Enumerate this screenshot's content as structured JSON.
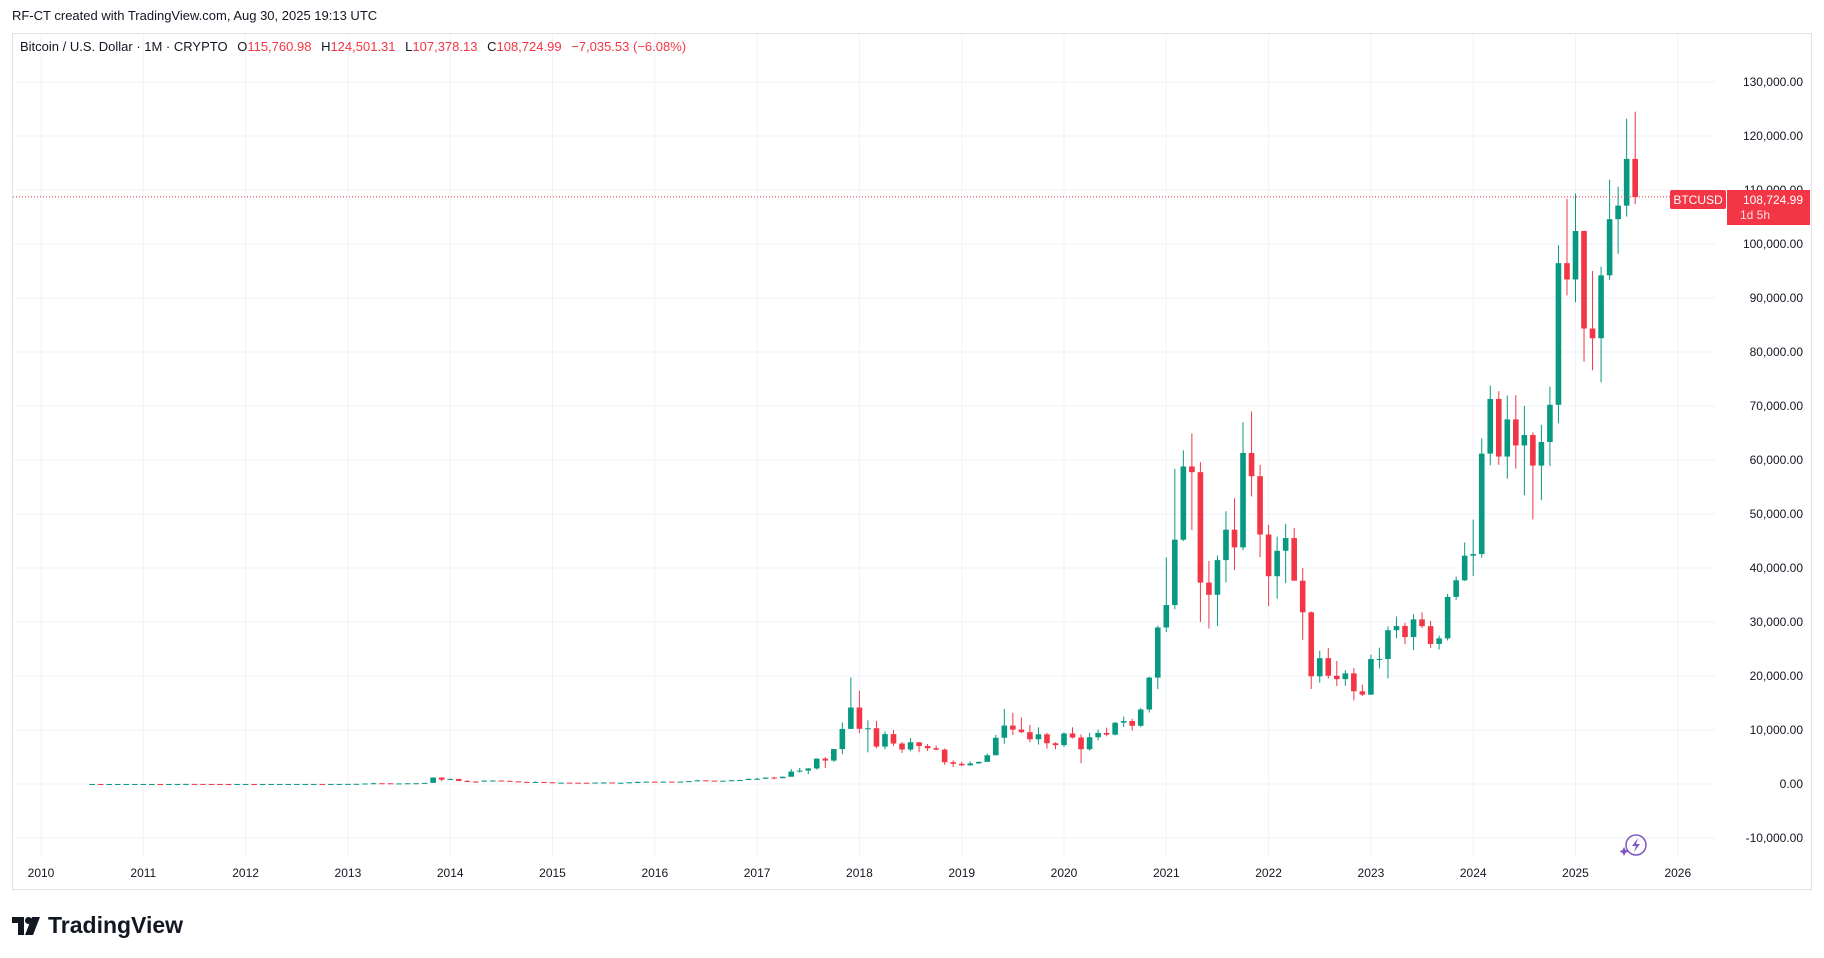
{
  "credit": "RF-CT created with TradingView.com, Aug 30, 2025 19:13 UTC",
  "legend": {
    "symbol": "Bitcoin / U.S. Dollar · 1M · CRYPTO",
    "o_label": "O",
    "o": "115,760.98",
    "h_label": "H",
    "h": "124,501.31",
    "l_label": "L",
    "l": "107,378.13",
    "c_label": "C",
    "c": "108,724.99",
    "change": "−7,035.53 (−6.08%)"
  },
  "price_tag": {
    "ticker": "BTCUSD",
    "price": "108,724.99",
    "countdown": "1d 5h"
  },
  "brand": "TradingView",
  "colors": {
    "up": "#089981",
    "down": "#f23645",
    "grid": "#f0f3fa",
    "text": "#131722",
    "ai_icon": "#7e57c2"
  },
  "icons": [
    "tradingview-logo-icon",
    "lightning-icon"
  ],
  "chart_data": {
    "type": "candlestick",
    "interval": "1M",
    "title": "Bitcoin / U.S. Dollar · 1M · CRYPTO",
    "grid": true,
    "ylim": [
      -10000,
      130000
    ],
    "y_ticks": [
      "130,000.00",
      "120,000.00",
      "110,000.00",
      "100,000.00",
      "90,000.00",
      "80,000.00",
      "70,000.00",
      "60,000.00",
      "50,000.00",
      "40,000.00",
      "30,000.00",
      "20,000.00",
      "10,000.00",
      "0.00",
      "-10,000.00"
    ],
    "y_tick_values": [
      130000,
      120000,
      110000,
      100000,
      90000,
      80000,
      70000,
      60000,
      50000,
      40000,
      30000,
      20000,
      10000,
      0,
      -10000
    ],
    "x_ticks": [
      "2010",
      "2011",
      "2012",
      "2013",
      "2014",
      "2015",
      "2016",
      "2017",
      "2018",
      "2019",
      "2020",
      "2021",
      "2022",
      "2023",
      "2024",
      "2025",
      "2026"
    ],
    "last_price": 108724.99,
    "start": "2010-07",
    "ohlc": [
      [
        0.05,
        0.09,
        0.05,
        0.07
      ],
      [
        0.07,
        0.07,
        0.05,
        0.06
      ],
      [
        0.06,
        0.07,
        0.06,
        0.06
      ],
      [
        0.06,
        0.2,
        0.06,
        0.19
      ],
      [
        0.19,
        0.5,
        0.19,
        0.21
      ],
      [
        0.21,
        0.3,
        0.2,
        0.3
      ],
      [
        0.3,
        0.6,
        0.3,
        0.52
      ],
      [
        0.52,
        1.1,
        0.52,
        0.86
      ],
      [
        0.86,
        0.95,
        0.7,
        0.78
      ],
      [
        0.78,
        4,
        0.78,
        3.5
      ],
      [
        3.5,
        9,
        3.5,
        8.7
      ],
      [
        8.7,
        32,
        8.7,
        16.7
      ],
      [
        16.7,
        17,
        12,
        13.4
      ],
      [
        13.4,
        15,
        8,
        8.2
      ],
      [
        8.2,
        9,
        4.5,
        5.1
      ],
      [
        5.1,
        5.2,
        2,
        3.2
      ],
      [
        3.2,
        3.3,
        2,
        2.97
      ],
      [
        2.97,
        4.8,
        2.8,
        4.7
      ],
      [
        4.7,
        7.2,
        4.7,
        5.5
      ],
      [
        5.5,
        6.1,
        4.3,
        4.9
      ],
      [
        4.9,
        5.4,
        4.7,
        4.9
      ],
      [
        4.9,
        5.3,
        4.7,
        5.0
      ],
      [
        5.0,
        5.2,
        4.9,
        5.1
      ],
      [
        5.1,
        6.8,
        5.1,
        6.7
      ],
      [
        6.7,
        9.6,
        6.5,
        9.3
      ],
      [
        9.3,
        16,
        7,
        10.2
      ],
      [
        10.2,
        12.6,
        9.9,
        12.4
      ],
      [
        12.4,
        12.9,
        10,
        11.2
      ],
      [
        11.2,
        12.8,
        10.7,
        12.6
      ],
      [
        12.6,
        13.9,
        12.5,
        13.5
      ],
      [
        13.5,
        20.5,
        13,
        20.4
      ],
      [
        20.4,
        33.4,
        19,
        33.4
      ],
      [
        33.4,
        95,
        33,
        93
      ],
      [
        93,
        266,
        50,
        139
      ],
      [
        139,
        140,
        80,
        129
      ],
      [
        129,
        130,
        85,
        97
      ],
      [
        97,
        110,
        65,
        106
      ],
      [
        106,
        140,
        100,
        135
      ],
      [
        135,
        145,
        120,
        141
      ],
      [
        141,
        220,
        100,
        211
      ],
      [
        211,
        1240,
        200,
        1205
      ],
      [
        1205,
        1205,
        530,
        805
      ],
      [
        805,
        1030,
        720,
        938
      ],
      [
        938,
        940,
        500,
        573
      ],
      [
        573,
        720,
        440,
        458
      ],
      [
        458,
        550,
        340,
        447
      ],
      [
        447,
        630,
        420,
        628
      ],
      [
        628,
        680,
        530,
        641
      ],
      [
        641,
        660,
        570,
        587
      ],
      [
        587,
        600,
        440,
        481
      ],
      [
        481,
        500,
        370,
        387
      ],
      [
        387,
        420,
        275,
        338
      ],
      [
        338,
        460,
        320,
        378
      ],
      [
        378,
        390,
        310,
        320
      ],
      [
        320,
        330,
        165,
        218
      ],
      [
        218,
        270,
        210,
        254
      ],
      [
        254,
        300,
        235,
        244
      ],
      [
        244,
        260,
        215,
        236
      ],
      [
        236,
        245,
        225,
        230
      ],
      [
        230,
        270,
        220,
        263
      ],
      [
        263,
        315,
        255,
        284
      ],
      [
        284,
        285,
        200,
        230
      ],
      [
        230,
        245,
        225,
        236
      ],
      [
        236,
        335,
        235,
        314
      ],
      [
        314,
        500,
        310,
        377
      ],
      [
        377,
        470,
        350,
        430
      ],
      [
        430,
        460,
        355,
        368
      ],
      [
        368,
        440,
        365,
        437
      ],
      [
        437,
        440,
        400,
        416
      ],
      [
        416,
        465,
        410,
        448
      ],
      [
        448,
        550,
        440,
        531
      ],
      [
        531,
        780,
        530,
        673
      ],
      [
        673,
        700,
        600,
        624
      ],
      [
        624,
        625,
        530,
        575
      ],
      [
        575,
        620,
        565,
        609
      ],
      [
        609,
        720,
        605,
        700
      ],
      [
        700,
        760,
        680,
        742
      ],
      [
        742,
        975,
        740,
        964
      ],
      [
        964,
        1190,
        750,
        970
      ],
      [
        970,
        1200,
        920,
        1190
      ],
      [
        1190,
        1350,
        890,
        1080
      ],
      [
        1080,
        1350,
        1080,
        1350
      ],
      [
        1350,
        2760,
        1350,
        2300
      ],
      [
        2300,
        2980,
        2100,
        2480
      ],
      [
        2480,
        2930,
        1830,
        2880
      ],
      [
        2880,
        4760,
        2670,
        4700
      ],
      [
        4700,
        4980,
        2950,
        4340
      ],
      [
        4340,
        6470,
        4110,
        6470
      ],
      [
        6470,
        11400,
        5500,
        10200
      ],
      [
        10200,
        19700,
        10700,
        14160
      ],
      [
        14160,
        17250,
        9400,
        10220
      ],
      [
        10220,
        11800,
        5870,
        10330
      ],
      [
        10330,
        11700,
        6600,
        6930
      ],
      [
        6930,
        9750,
        6430,
        9240
      ],
      [
        9240,
        9990,
        7050,
        7490
      ],
      [
        7490,
        7780,
        5760,
        6390
      ],
      [
        6390,
        8500,
        6070,
        7730
      ],
      [
        7730,
        7760,
        5880,
        7030
      ],
      [
        7030,
        7410,
        6120,
        6630
      ],
      [
        6630,
        7130,
        6200,
        6370
      ],
      [
        6370,
        6560,
        3560,
        4040
      ],
      [
        4040,
        4380,
        3150,
        3740
      ],
      [
        3740,
        4110,
        3350,
        3460
      ],
      [
        3460,
        4200,
        3390,
        3810
      ],
      [
        3810,
        4150,
        3730,
        4100
      ],
      [
        4100,
        5620,
        4060,
        5320
      ],
      [
        5320,
        9100,
        5330,
        8560
      ],
      [
        8560,
        13880,
        7460,
        10820
      ],
      [
        10820,
        13190,
        9070,
        10080
      ],
      [
        10080,
        12330,
        9420,
        9600
      ],
      [
        9600,
        10920,
        7740,
        8290
      ],
      [
        8290,
        10500,
        7300,
        9200
      ],
      [
        9200,
        9500,
        6530,
        7550
      ],
      [
        7550,
        7750,
        6430,
        7200
      ],
      [
        7200,
        9580,
        6850,
        9350
      ],
      [
        9350,
        10500,
        8450,
        8600
      ],
      [
        8600,
        9190,
        3850,
        6440
      ],
      [
        6440,
        9460,
        6160,
        8660
      ],
      [
        8660,
        10080,
        8130,
        9460
      ],
      [
        9460,
        10430,
        8830,
        9140
      ],
      [
        9140,
        11450,
        8990,
        11350
      ],
      [
        11350,
        12480,
        10550,
        11650
      ],
      [
        11650,
        12070,
        9880,
        10780
      ],
      [
        10780,
        14100,
        10540,
        13800
      ],
      [
        13800,
        19870,
        13250,
        19700
      ],
      [
        19700,
        29320,
        17570,
        28990
      ],
      [
        28990,
        41950,
        28130,
        33140
      ],
      [
        33140,
        58350,
        32350,
        45240
      ],
      [
        45240,
        61780,
        45000,
        58800
      ],
      [
        58800,
        64900,
        47000,
        57750
      ],
      [
        57750,
        59600,
        30000,
        37300
      ],
      [
        37300,
        41300,
        28800,
        35040
      ],
      [
        35040,
        42300,
        29280,
        41460
      ],
      [
        41460,
        50500,
        37330,
        47100
      ],
      [
        47100,
        52900,
        39600,
        43820
      ],
      [
        43820,
        67000,
        43300,
        61300
      ],
      [
        61300,
        69000,
        53250,
        57000
      ],
      [
        57000,
        59100,
        42000,
        46200
      ],
      [
        46200,
        47990,
        32950,
        38480
      ],
      [
        38480,
        45820,
        34320,
        43190
      ],
      [
        43190,
        48190,
        37200,
        45540
      ],
      [
        45540,
        47440,
        37700,
        37650
      ],
      [
        37650,
        40000,
        26700,
        31800
      ],
      [
        31800,
        31960,
        17600,
        19940
      ],
      [
        19940,
        24670,
        18780,
        23300
      ],
      [
        23300,
        25200,
        19530,
        20050
      ],
      [
        20050,
        22790,
        18150,
        19420
      ],
      [
        19420,
        21080,
        18190,
        20490
      ],
      [
        20490,
        21450,
        15480,
        17170
      ],
      [
        17170,
        18390,
        16260,
        16550
      ],
      [
        16550,
        23960,
        16500,
        23140
      ],
      [
        23140,
        25250,
        21400,
        23150
      ],
      [
        23150,
        29190,
        19550,
        28480
      ],
      [
        28480,
        31000,
        26970,
        29250
      ],
      [
        29250,
        29830,
        25870,
        27220
      ],
      [
        27220,
        31440,
        24800,
        30480
      ],
      [
        30480,
        31800,
        28900,
        29230
      ],
      [
        29230,
        30200,
        25170,
        25940
      ],
      [
        25940,
        27480,
        24900,
        26970
      ],
      [
        26970,
        35200,
        26560,
        34650
      ],
      [
        34650,
        38420,
        34100,
        37720
      ],
      [
        37720,
        44730,
        37600,
        42280
      ],
      [
        42280,
        48970,
        38500,
        42580
      ],
      [
        42580,
        64000,
        41880,
        61180
      ],
      [
        61180,
        73800,
        59000,
        71300
      ],
      [
        71300,
        72750,
        59100,
        60640
      ],
      [
        60640,
        71950,
        56550,
        67520
      ],
      [
        67520,
        72000,
        58400,
        62700
      ],
      [
        62700,
        70000,
        53500,
        64620
      ],
      [
        64620,
        65100,
        49000,
        58970
      ],
      [
        58970,
        66500,
        52550,
        63330
      ],
      [
        63330,
        73600,
        58900,
        70220
      ],
      [
        70220,
        99800,
        66800,
        96450
      ],
      [
        96450,
        108350,
        90500,
        93430
      ],
      [
        93430,
        109350,
        89200,
        102400
      ],
      [
        102400,
        102500,
        78200,
        84350
      ],
      [
        84350,
        95000,
        76600,
        82550
      ],
      [
        82550,
        95800,
        74400,
        94200
      ],
      [
        94200,
        111900,
        93350,
        104600
      ],
      [
        104600,
        110600,
        98200,
        107100
      ],
      [
        107100,
        123200,
        105100,
        115760.98
      ],
      [
        115760.98,
        124501.31,
        107378.13,
        108724.99
      ]
    ]
  }
}
